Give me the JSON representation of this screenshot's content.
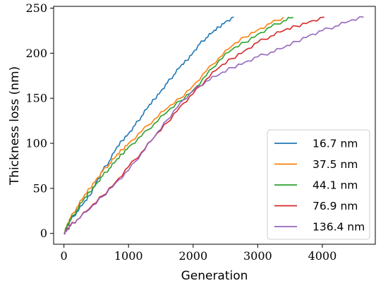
{
  "chart_data": {
    "type": "line",
    "xlabel": "Generation",
    "ylabel": "Thickness loss (nm)",
    "xlim": [
      -160,
      4820
    ],
    "ylim": [
      -12,
      252
    ],
    "xticks": [
      0,
      1000,
      2000,
      3000,
      4000
    ],
    "yticks": [
      0,
      50,
      100,
      150,
      200,
      250
    ],
    "grid": false,
    "legend_position": "lower-right",
    "series": [
      {
        "name": "16.7 nm",
        "color": "#1f77b4",
        "x": [
          0,
          50,
          100,
          200,
          300,
          400,
          500,
          600,
          700,
          800,
          900,
          1000,
          1100,
          1200,
          1300,
          1400,
          1500,
          1600,
          1700,
          1800,
          1900,
          2000,
          2100,
          2200,
          2300,
          2400,
          2500,
          2630
        ],
        "y": [
          0,
          8,
          14,
          24,
          33,
          42,
          57,
          70,
          80,
          93,
          103,
          111,
          120,
          130,
          140,
          149,
          158,
          167,
          176,
          185,
          192,
          201,
          210,
          217,
          223,
          229,
          235,
          240
        ]
      },
      {
        "name": "37.5 nm",
        "color": "#ff7f0e",
        "x": [
          0,
          50,
          100,
          200,
          300,
          400,
          500,
          600,
          700,
          800,
          900,
          1000,
          1200,
          1400,
          1600,
          1800,
          2000,
          2200,
          2400,
          2600,
          2800,
          3000,
          3200,
          3400
        ],
        "y": [
          0,
          10,
          17,
          29,
          40,
          50,
          60,
          69,
          77,
          85,
          93,
          100,
          113,
          127,
          139,
          150,
          164,
          180,
          195,
          208,
          218,
          226,
          233,
          240
        ]
      },
      {
        "name": "44.1 nm",
        "color": "#2ca02c",
        "x": [
          0,
          50,
          100,
          200,
          300,
          400,
          500,
          600,
          700,
          800,
          900,
          1000,
          1200,
          1400,
          1600,
          1800,
          2000,
          2200,
          2400,
          2600,
          2800,
          3000,
          3200,
          3400,
          3550
        ],
        "y": [
          0,
          9,
          15,
          26,
          37,
          46,
          55,
          64,
          72,
          80,
          88,
          96,
          108,
          122,
          135,
          147,
          159,
          175,
          192,
          204,
          212,
          221,
          229,
          236,
          240
        ]
      },
      {
        "name": "76.9 nm",
        "color": "#d62728",
        "x": [
          0,
          50,
          100,
          200,
          400,
          600,
          800,
          1000,
          1200,
          1400,
          1600,
          1800,
          2000,
          2200,
          2400,
          2600,
          2800,
          3000,
          3200,
          3400,
          3600,
          3800,
          4030
        ],
        "y": [
          0,
          5,
          9,
          15,
          28,
          42,
          57,
          74,
          90,
          107,
          123,
          141,
          155,
          171,
          184,
          194,
          203,
          212,
          219,
          225,
          230,
          235,
          240
        ]
      },
      {
        "name": "136.4 nm",
        "color": "#9467bd",
        "x": [
          0,
          50,
          100,
          200,
          400,
          600,
          800,
          1000,
          1200,
          1400,
          1600,
          1800,
          2000,
          2200,
          2400,
          2600,
          2800,
          3000,
          3200,
          3400,
          3600,
          3800,
          4000,
          4200,
          4400,
          4640
        ],
        "y": [
          0,
          4,
          8,
          15,
          27,
          41,
          56,
          70,
          89,
          107,
          126,
          145,
          158,
          169,
          176,
          184,
          190,
          196,
          201,
          206,
          213,
          220,
          225,
          230,
          235,
          240
        ]
      }
    ]
  }
}
